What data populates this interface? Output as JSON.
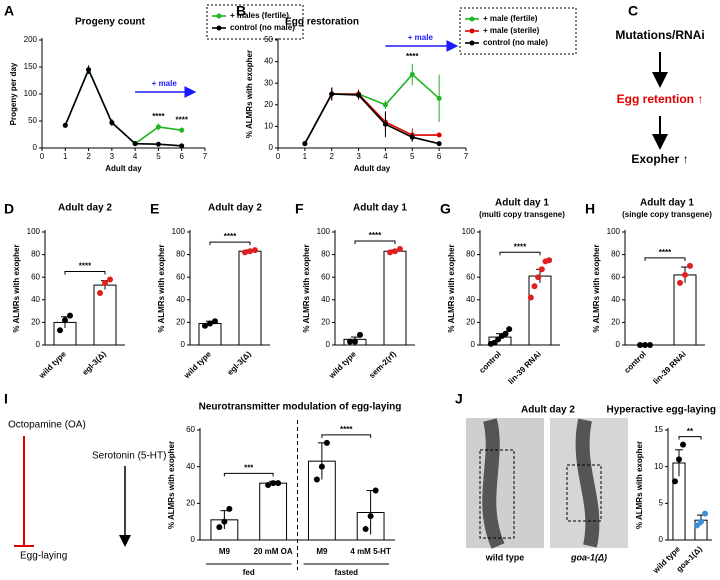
{
  "chart_data": [
    {
      "type": "line",
      "panel": "A",
      "title": "Progeny count",
      "xlabel": "Adult day",
      "ylabel": "Progeny per day",
      "xlim": [
        0,
        7
      ],
      "xticks": [
        0,
        1,
        2,
        3,
        4,
        5,
        6,
        7
      ],
      "ylim": [
        0,
        200
      ],
      "yticks": [
        0,
        50,
        100,
        150,
        200
      ],
      "x": [
        1,
        2,
        3,
        4,
        5,
        6
      ],
      "series": [
        {
          "name": "+ males (fertile)",
          "color": "#22b422",
          "values": [
            42,
            145,
            47,
            8,
            39,
            33
          ],
          "errors": [
            2,
            8,
            6,
            1,
            6,
            5
          ]
        },
        {
          "name": "control (no male)",
          "color": "#000000",
          "values": [
            42,
            145,
            47,
            8,
            7,
            4
          ],
          "errors": [
            2,
            8,
            6,
            1,
            1,
            1
          ]
        }
      ],
      "arrow": {
        "text": "+ male",
        "from": 4,
        "to": 6.5,
        "color": "#1a1aff"
      },
      "annotations": [
        {
          "text": "****",
          "x": 5
        },
        {
          "text": "****",
          "x": 6
        }
      ]
    },
    {
      "type": "line",
      "panel": "B",
      "title": "Egg restoration",
      "xlabel": "Adult day",
      "ylabel": "% ALMRs with exopher",
      "xlim": [
        0,
        7
      ],
      "xticks": [
        0,
        1,
        2,
        3,
        4,
        5,
        6,
        7
      ],
      "ylim": [
        0,
        50
      ],
      "yticks": [
        0,
        10,
        20,
        30,
        40,
        50
      ],
      "x": [
        1,
        2,
        3,
        4,
        5,
        6
      ],
      "series": [
        {
          "name": "+ male (fertile)",
          "color": "#22b422",
          "values": [
            2,
            25,
            25,
            20,
            34,
            23
          ],
          "errors": [
            1,
            3,
            2,
            2,
            5,
            11
          ]
        },
        {
          "name": "+ male (sterile)",
          "color": "#e00000",
          "values": [
            2,
            25,
            25,
            12,
            6,
            6
          ],
          "errors": [
            1,
            3,
            2,
            4,
            3,
            1
          ]
        },
        {
          "name": "control (no male)",
          "color": "#000000",
          "values": [
            2,
            25,
            24.5,
            11,
            5,
            2
          ],
          "errors": [
            1,
            3,
            2,
            6,
            2,
            1
          ]
        }
      ],
      "arrow": {
        "text": "+ male",
        "from": 4,
        "to": 6.6,
        "color": "#1a1aff"
      },
      "annotations": [
        {
          "text": "****",
          "x": 5
        }
      ]
    },
    {
      "type": "bar",
      "panel": "D",
      "title": "Adult day 2",
      "ylabel": "% ALMRs with exopher",
      "ylim": [
        0,
        100
      ],
      "yticks": [
        0,
        20,
        40,
        60,
        80,
        100
      ],
      "categories": [
        "wild type",
        "egl-3(Δ)"
      ],
      "values": [
        20,
        53
      ],
      "errors": [
        5,
        4
      ],
      "points": [
        [
          13,
          22,
          26
        ],
        [
          46,
          55,
          58
        ]
      ],
      "point_colors": [
        "#000000",
        "#e02020"
      ],
      "rotate_labels": true,
      "comparisons": [
        {
          "pair": [
            0,
            1
          ],
          "label": "****"
        }
      ]
    },
    {
      "type": "bar",
      "panel": "E",
      "title": "Adult day 2",
      "ylabel": "% ALMRs with exopher",
      "ylim": [
        0,
        100
      ],
      "yticks": [
        0,
        20,
        40,
        60,
        80,
        100
      ],
      "categories": [
        "wild type",
        "egl-3(Δ)"
      ],
      "values": [
        19,
        83
      ],
      "errors": [
        2,
        1
      ],
      "points": [
        [
          17,
          19,
          21
        ],
        [
          82,
          83,
          84
        ]
      ],
      "point_colors": [
        "#000000",
        "#e02020"
      ],
      "rotate_labels": true,
      "comparisons": [
        {
          "pair": [
            0,
            1
          ],
          "label": "****"
        }
      ]
    },
    {
      "type": "bar",
      "panel": "F",
      "title": "Adult day 1",
      "ylabel": "% ALMRs with exopher",
      "ylim": [
        0,
        100
      ],
      "yticks": [
        0,
        20,
        40,
        60,
        80,
        100
      ],
      "categories": [
        "wild type",
        "sem-2(rf)"
      ],
      "values": [
        5,
        83
      ],
      "errors": [
        2,
        1
      ],
      "points": [
        [
          3,
          3,
          9
        ],
        [
          82,
          83,
          85
        ]
      ],
      "point_colors": [
        "#000000",
        "#e02020"
      ],
      "rotate_labels": true,
      "comparisons": [
        {
          "pair": [
            0,
            1
          ],
          "label": "****"
        }
      ]
    },
    {
      "type": "bar",
      "panel": "G",
      "title": "Adult day 1",
      "subtitle": "(multi copy transgene)",
      "ylabel": "% ALMRs with exopher",
      "ylim": [
        0,
        100
      ],
      "yticks": [
        0,
        20,
        40,
        60,
        80,
        100
      ],
      "categories": [
        "control",
        "lin-39 RNAi"
      ],
      "values": [
        7,
        61
      ],
      "errors": [
        3,
        6
      ],
      "points": [
        [
          1,
          2,
          5,
          8,
          10,
          14
        ],
        [
          42,
          52,
          60,
          67,
          74,
          75
        ]
      ],
      "point_colors": [
        "#000000",
        "#e02020"
      ],
      "rotate_labels": true,
      "comparisons": [
        {
          "pair": [
            0,
            1
          ],
          "label": "****"
        }
      ]
    },
    {
      "type": "bar",
      "panel": "H",
      "title": "Adult day 1",
      "subtitle": "(single copy transgene)",
      "ylabel": "% ALMRs with exopher",
      "ylim": [
        0,
        100
      ],
      "yticks": [
        0,
        20,
        40,
        60,
        80,
        100
      ],
      "categories": [
        "control",
        "lin-39 RNAi"
      ],
      "values": [
        0,
        62
      ],
      "errors": [
        0,
        7
      ],
      "points": [
        [
          0,
          0,
          0
        ],
        [
          55,
          62,
          70
        ]
      ],
      "point_colors": [
        "#000000",
        "#e02020"
      ],
      "rotate_labels": true,
      "comparisons": [
        {
          "pair": [
            0,
            1
          ],
          "label": "****"
        }
      ]
    },
    {
      "type": "bar",
      "title": "Neurotransmitter modulation of egg-laying",
      "ylabel": "% ALMRs with exopher",
      "ylim": [
        0,
        60
      ],
      "yticks": [
        0,
        20,
        40,
        60
      ],
      "categories": [
        "M9",
        "20 mM OA",
        "M9",
        "4 mM 5-HT"
      ],
      "values": [
        11,
        31,
        43,
        15
      ],
      "errors": [
        5,
        1,
        10,
        12
      ],
      "points": [
        [
          7,
          10,
          17
        ],
        [
          30,
          31,
          31
        ],
        [
          33,
          40,
          53
        ],
        [
          6,
          13,
          27
        ]
      ],
      "point_colors": [
        "#000000",
        "#000000",
        "#000000",
        "#000000"
      ],
      "rotate_labels": false,
      "comparisons": [
        {
          "pair": [
            0,
            1
          ],
          "label": "***"
        },
        {
          "pair": [
            2,
            3
          ],
          "label": "****"
        }
      ],
      "groups": [
        {
          "label": "fed",
          "span": 2
        },
        {
          "label": "fasted",
          "span": 2
        }
      ]
    },
    {
      "type": "bar",
      "title": "Hyperactive egg-laying",
      "ylabel": "% ALMRs with exopher",
      "ylim": [
        0,
        15
      ],
      "yticks": [
        0,
        5,
        10,
        15
      ],
      "categories": [
        "wild type",
        "goa-1(Δ)"
      ],
      "values": [
        10.5,
        2.7
      ],
      "errors": [
        1.8,
        0.7
      ],
      "points": [
        [
          8,
          11,
          13
        ],
        [
          2,
          2.5,
          3.6
        ]
      ],
      "point_colors": [
        "#000000",
        "#3a8fd8"
      ],
      "rotate_labels": true,
      "comparisons": [
        {
          "pair": [
            0,
            1
          ],
          "label": "**"
        }
      ]
    }
  ],
  "diagram_c": {
    "panel": "C",
    "steps": [
      "Mutations/RNAi",
      "Egg retention ↑",
      "Exopher ↑"
    ]
  },
  "diagram_i": {
    "panel": "I",
    "inhibitor": "Octopamine (OA)",
    "activator": "Serotonin (5-HT)",
    "target": "Egg-laying"
  },
  "images_j": {
    "panel": "J",
    "title": "Adult day 2",
    "labels": [
      "wild type",
      "goa-1(Δ)"
    ]
  }
}
